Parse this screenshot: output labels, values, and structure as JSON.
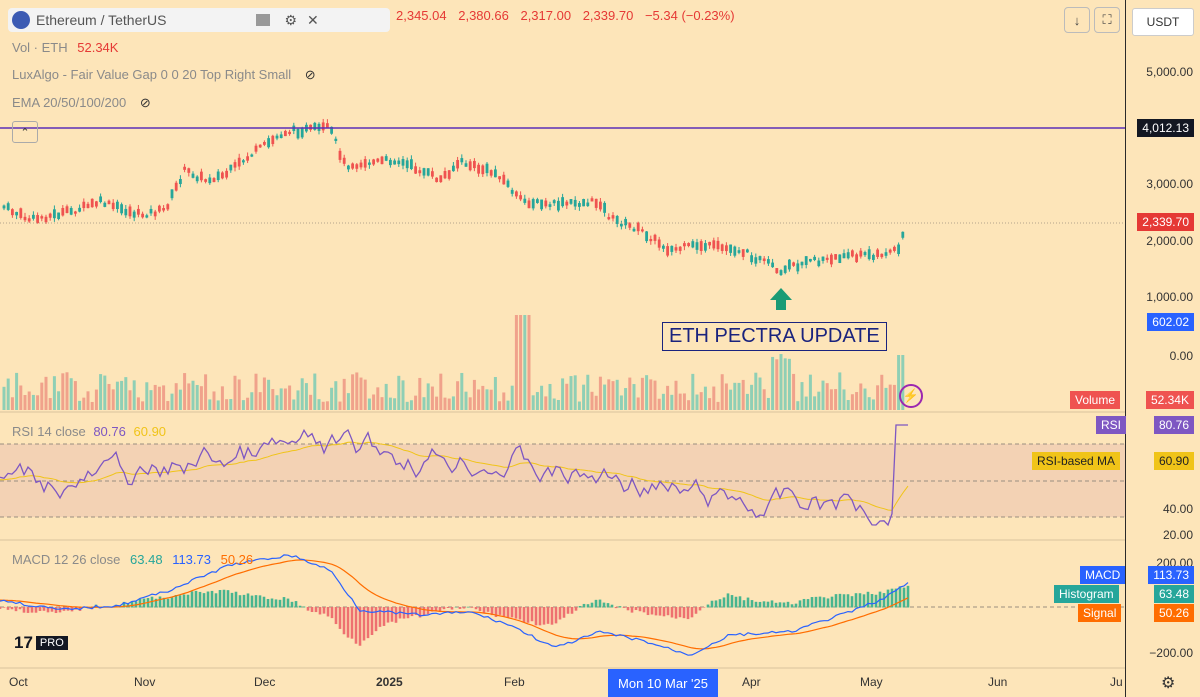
{
  "symbol": {
    "name": "Ethereum / TetherUS"
  },
  "ohlc": {
    "open": "2,345.04",
    "high": "2,380.66",
    "low": "2,317.00",
    "close": "2,339.70",
    "change": "−5.34 (−0.23%)"
  },
  "legend": {
    "vol_label": "Vol · ETH",
    "vol_value": "52.34K",
    "lux": "LuxAlgo - Fair Value Gap 0 0 20 Top Right Small",
    "ema": "EMA 20/50/100/200"
  },
  "currency": "USDT",
  "annotation": "ETH PECTRA UPDATE",
  "price_scale": {
    "labels": [
      "5,000.00",
      "3,000.00",
      "2,000.00",
      "1,000.00",
      "0.00"
    ],
    "hline": "4,012.13",
    "last": "2,339.70",
    "volume_axis": "602.02"
  },
  "volume_tag": {
    "label": "Volume",
    "value": "52.34K"
  },
  "rsi": {
    "title": "RSI 14 close",
    "rsi": "80.76",
    "ma": "60.90",
    "tag_rsi": "RSI",
    "tag_ma": "RSI-based MA",
    "axis": [
      "40.00",
      "20.00"
    ]
  },
  "macd": {
    "title": "MACD 12 26 close",
    "hist": "63.48",
    "macd": "113.73",
    "signal": "50.26",
    "tag_macd": "MACD",
    "tag_hist": "Histogram",
    "tag_signal": "Signal",
    "axis": [
      "200.00",
      "−200.00"
    ]
  },
  "xaxis": {
    "labels": [
      "Oct",
      "Nov",
      "Dec",
      "2025",
      "Feb",
      "Apr",
      "May",
      "Jun",
      "Ju"
    ],
    "cursor": "Mon 10 Mar '25"
  },
  "logo": "PRO",
  "colors": {
    "up": "#26a69a",
    "down": "#ef5350",
    "hline": "#5b2eb8",
    "rsi": "#7e57c2",
    "ma": "#f0c419",
    "macd": "#2962ff",
    "signal": "#ff6d00"
  },
  "icons": [
    "ethereum-icon",
    "flag-icon",
    "gear-icon",
    "close-icon",
    "download-icon",
    "fullscreen-icon",
    "lightning-icon",
    "chevron-up-icon",
    "gear-icon"
  ]
}
